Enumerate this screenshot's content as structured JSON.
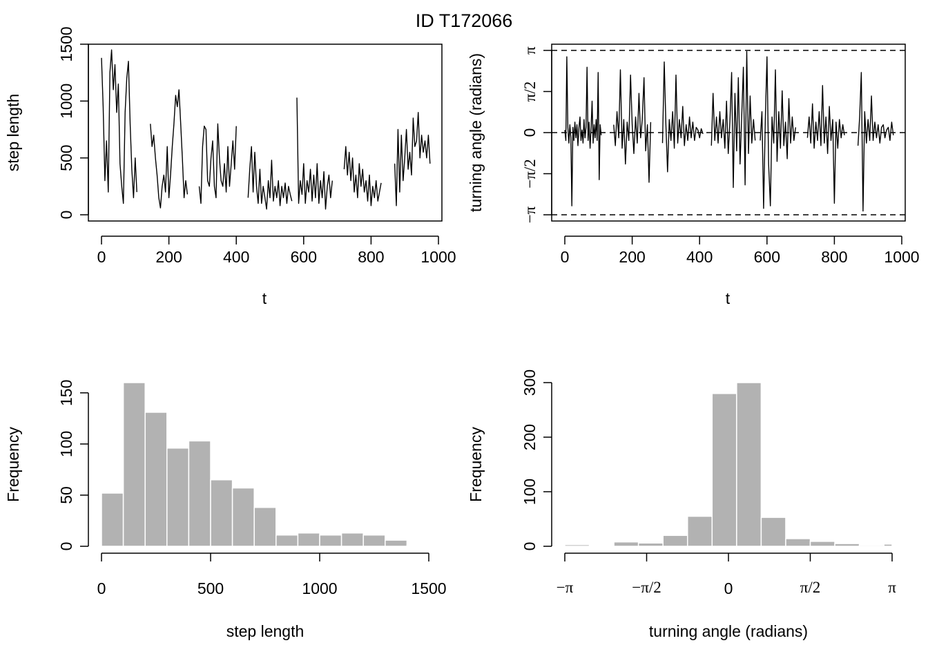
{
  "figure": {
    "title": "ID T172066"
  },
  "chart_data": [
    {
      "id": "step_ts",
      "type": "line",
      "title": "",
      "xlabel": "t",
      "ylabel": "step length",
      "xlim": [
        0,
        1000
      ],
      "ylim": [
        0,
        1500
      ],
      "x_ticks": [
        0,
        200,
        400,
        600,
        800,
        1000
      ],
      "x_tick_labels": [
        "0",
        "200",
        "400",
        "600",
        "800",
        "1000"
      ],
      "y_ticks": [
        0,
        500,
        1000,
        1500
      ],
      "y_tick_labels": [
        "0",
        "500",
        "1000",
        "1500"
      ],
      "segments": [
        {
          "x": [
            0,
            5,
            10,
            15,
            20,
            25,
            30,
            35,
            40,
            45,
            50,
            55,
            60,
            65,
            70,
            75,
            80,
            85,
            90,
            95,
            100,
            105
          ],
          "y": [
            1380,
            950,
            300,
            650,
            200,
            1250,
            1450,
            1100,
            1320,
            900,
            1150,
            450,
            250,
            100,
            900,
            1200,
            1350,
            800,
            400,
            150,
            500,
            200
          ]
        },
        {
          "x": [
            145,
            150,
            155,
            160,
            165,
            170,
            175,
            180,
            185,
            190,
            195,
            200,
            205,
            210,
            215,
            220,
            225,
            230,
            235,
            240,
            245,
            250,
            255
          ],
          "y": [
            800,
            600,
            700,
            500,
            350,
            150,
            60,
            250,
            350,
            200,
            600,
            150,
            350,
            600,
            800,
            1050,
            950,
            1100,
            800,
            500,
            150,
            300,
            180
          ]
        },
        {
          "x": [
            290,
            295,
            300,
            305,
            310,
            315,
            320,
            325,
            330,
            335,
            340,
            345,
            350,
            355,
            360,
            365,
            370,
            375,
            380,
            385,
            390,
            395,
            400
          ],
          "y": [
            250,
            100,
            600,
            780,
            750,
            300,
            250,
            500,
            650,
            250,
            150,
            800,
            500,
            300,
            250,
            450,
            200,
            600,
            250,
            450,
            650,
            400,
            780
          ]
        },
        {
          "x": [
            435,
            440,
            445,
            450,
            455,
            460,
            465,
            470,
            475,
            480,
            485,
            490,
            495,
            500,
            505,
            510,
            515,
            520,
            525,
            530,
            535,
            540,
            545,
            550,
            555,
            560,
            565
          ],
          "y": [
            150,
            400,
            600,
            200,
            550,
            250,
            100,
            400,
            100,
            250,
            150,
            50,
            300,
            150,
            480,
            120,
            250,
            150,
            300,
            80,
            250,
            150,
            280,
            100,
            250,
            180,
            120
          ]
        },
        {
          "x": [
            580,
            585,
            590,
            595,
            600,
            605,
            610,
            615,
            620,
            625,
            630,
            635,
            640,
            645,
            650,
            655,
            660,
            665,
            670,
            675,
            680,
            685
          ],
          "y": [
            1030,
            100,
            300,
            180,
            450,
            100,
            300,
            200,
            400,
            120,
            350,
            150,
            450,
            100,
            300,
            150,
            380,
            50,
            250,
            350,
            150,
            300
          ]
        },
        {
          "x": [
            720,
            725,
            730,
            735,
            740,
            745,
            750,
            755,
            760,
            765,
            770,
            775,
            780,
            785,
            790,
            795,
            800,
            805,
            810,
            815,
            820,
            825,
            830
          ],
          "y": [
            400,
            600,
            350,
            550,
            300,
            500,
            200,
            350,
            150,
            450,
            250,
            400,
            200,
            300,
            120,
            350,
            80,
            250,
            150,
            300,
            120,
            200,
            280
          ]
        },
        {
          "x": [
            870,
            875,
            880,
            885,
            890,
            895,
            900,
            905,
            910,
            915,
            920,
            925,
            930,
            935,
            940,
            945,
            950,
            955,
            960,
            965,
            970,
            975
          ],
          "y": [
            450,
            80,
            750,
            200,
            700,
            300,
            500,
            750,
            400,
            550,
            350,
            850,
            600,
            650,
            900,
            500,
            700,
            550,
            650,
            500,
            700,
            450
          ]
        }
      ]
    },
    {
      "id": "angle_ts",
      "type": "line",
      "title": "",
      "xlabel": "t",
      "ylabel": "turning angle (radians)",
      "xlim": [
        0,
        1000
      ],
      "ylim": [
        -3.1416,
        3.1416
      ],
      "x_ticks": [
        0,
        200,
        400,
        600,
        800,
        1000
      ],
      "x_tick_labels": [
        "0",
        "200",
        "400",
        "600",
        "800",
        "1000"
      ],
      "y_ticks": [
        -3.1416,
        -1.5708,
        0,
        1.5708,
        3.1416
      ],
      "y_tick_labels": [
        "−π",
        "−π/2",
        "0",
        "π/2",
        "π"
      ],
      "reference_lines": [
        -3.1416,
        0,
        3.1416
      ],
      "segments": [
        {
          "x": [
            0,
            3,
            6,
            9,
            12,
            15,
            18,
            21,
            24,
            27,
            30,
            33,
            36,
            39,
            42,
            45,
            48,
            51,
            54,
            57,
            60,
            63,
            66,
            69,
            72,
            75,
            78,
            81,
            84,
            87,
            90,
            93,
            96,
            99,
            102,
            105,
            108
          ],
          "y": [
            0.1,
            -0.3,
            2.9,
            0.2,
            -0.4,
            0.3,
            -0.2,
            -2.8,
            0.2,
            -0.3,
            0.4,
            -0.2,
            0.3,
            -0.5,
            0.2,
            0.6,
            -0.3,
            0.1,
            -0.4,
            0.5,
            -0.2,
            0.2,
            2.5,
            -0.3,
            0.4,
            -0.6,
            0.2,
            1.2,
            -0.4,
            0.3,
            -0.2,
            0.5,
            -0.3,
            2.3,
            -1.8,
            0.3,
            -0.1
          ]
        },
        {
          "x": [
            145,
            150,
            155,
            160,
            165,
            170,
            175,
            180,
            185,
            190,
            195,
            200,
            205,
            210,
            215,
            220,
            225,
            230,
            235,
            240,
            245,
            250,
            255
          ],
          "y": [
            0.3,
            -0.5,
            0.8,
            -0.2,
            2.4,
            -0.6,
            0.5,
            -1.2,
            0.4,
            -0.3,
            2.2,
            0.3,
            -0.8,
            0.6,
            -0.4,
            1.5,
            -0.2,
            0.5,
            2.1,
            -0.7,
            0.3,
            -1.9,
            0.4
          ]
        },
        {
          "x": [
            290,
            295,
            300,
            305,
            310,
            315,
            320,
            325,
            330,
            335,
            340,
            345,
            350,
            355,
            360,
            365,
            370,
            375,
            380,
            385,
            390,
            395,
            400,
            405,
            410
          ],
          "y": [
            -0.4,
            2.7,
            0.3,
            -1.5,
            0.5,
            -0.3,
            0.8,
            -0.6,
            2.2,
            -0.4,
            0.5,
            -0.2,
            1.0,
            -0.5,
            0.3,
            -0.3,
            0.6,
            -0.2,
            0.4,
            -0.3,
            0.2,
            0.1,
            -0.2,
            0.15,
            -0.05
          ]
        },
        {
          "x": [
            435,
            440,
            445,
            450,
            455,
            460,
            465,
            470,
            475,
            480,
            485,
            490,
            495,
            500,
            505,
            510,
            515,
            520,
            525,
            530,
            535,
            540,
            545,
            550,
            555,
            560,
            565
          ],
          "y": [
            -0.5,
            1.5,
            -0.3,
            0.6,
            -0.4,
            0.8,
            -0.2,
            0.5,
            -0.6,
            1.2,
            -0.8,
            0.4,
            2.3,
            -2.1,
            1.5,
            -0.7,
            2.1,
            -1.2,
            0.6,
            2.5,
            -2.0,
            3.1,
            -0.8,
            1.4,
            -0.4,
            0.5,
            -0.3
          ]
        },
        {
          "x": [
            580,
            585,
            590,
            595,
            600,
            605,
            610,
            615,
            620,
            625,
            630,
            635,
            640,
            645,
            650,
            655,
            660,
            665,
            670,
            675,
            680,
            685
          ],
          "y": [
            -0.3,
            0.8,
            -2.9,
            0.5,
            2.9,
            -1.2,
            -2.8,
            0.6,
            -0.4,
            2.4,
            -1.1,
            0.8,
            -0.6,
            1.6,
            -0.5,
            0.4,
            -1.0,
            1.3,
            -0.4,
            0.6,
            -0.3,
            0.2
          ]
        },
        {
          "x": [
            720,
            725,
            730,
            735,
            740,
            745,
            750,
            755,
            760,
            765,
            770,
            775,
            780,
            785,
            790,
            795,
            800,
            805,
            810,
            815,
            820,
            825,
            830
          ],
          "y": [
            -0.2,
            0.6,
            -0.4,
            1.1,
            -0.6,
            0.4,
            -0.3,
            0.8,
            -0.5,
            1.8,
            -0.4,
            0.6,
            -0.8,
            1.0,
            -0.3,
            0.5,
            -2.7,
            0.4,
            -0.6,
            0.5,
            -0.2,
            0.3,
            -0.1
          ]
        },
        {
          "x": [
            870,
            875,
            880,
            885,
            890,
            895,
            900,
            905,
            910,
            915,
            920,
            925,
            930,
            935,
            940,
            945,
            950,
            955,
            960,
            965,
            970,
            975
          ],
          "y": [
            -0.5,
            0.6,
            2.3,
            -3.0,
            0.8,
            -0.4,
            0.5,
            -0.3,
            1.4,
            -0.3,
            0.4,
            -0.2,
            0.3,
            -0.4,
            0.2,
            0.3,
            -0.2,
            0.1,
            0.2,
            -0.3,
            0.4,
            -0.1
          ]
        }
      ]
    },
    {
      "id": "step_hist",
      "type": "bar",
      "subtype": "histogram",
      "title": "",
      "xlabel": "step length",
      "ylabel": "Frequency",
      "bin_edges": [
        0,
        100,
        200,
        300,
        400,
        500,
        600,
        700,
        800,
        900,
        1000,
        1100,
        1200,
        1300,
        1400,
        1500
      ],
      "values": [
        52,
        160,
        131,
        96,
        103,
        65,
        57,
        38,
        11,
        13,
        11,
        13,
        11,
        6,
        1
      ],
      "xlim": [
        0,
        1500
      ],
      "ylim": [
        0,
        160
      ],
      "x_ticks": [
        0,
        500,
        1000,
        1500
      ],
      "x_tick_labels": [
        "0",
        "500",
        "1000",
        "1500"
      ],
      "y_ticks": [
        0,
        50,
        100,
        150
      ],
      "y_tick_labels": [
        "0",
        "50",
        "100",
        "150"
      ]
    },
    {
      "id": "angle_hist",
      "type": "bar",
      "subtype": "histogram",
      "title": "",
      "xlabel": "turning angle (radians)",
      "ylabel": "Frequency",
      "bin_edges": [
        -3.1416,
        -2.6704,
        -2.1991,
        -1.7279,
        -1.2566,
        -0.7854,
        -0.3142,
        0.1571,
        0.6283,
        1.0996,
        1.5708,
        2.042,
        2.5133,
        2.9845,
        3.1416
      ],
      "bin_edges_note": "bins drawn as in figure",
      "values": [
        3,
        0,
        8,
        6,
        20,
        55,
        280,
        300,
        53,
        14,
        9,
        5,
        2,
        4
      ],
      "xlim": [
        -3.1416,
        3.1416
      ],
      "ylim": [
        0,
        300
      ],
      "x_ticks": [
        -3.1416,
        -1.5708,
        0,
        1.5708,
        3.1416
      ],
      "x_tick_labels": [
        "−π",
        "−π/2",
        "0",
        "π/2",
        "π"
      ],
      "y_ticks": [
        0,
        100,
        200,
        300
      ],
      "y_tick_labels": [
        "0",
        "100",
        "200",
        "300"
      ]
    }
  ]
}
